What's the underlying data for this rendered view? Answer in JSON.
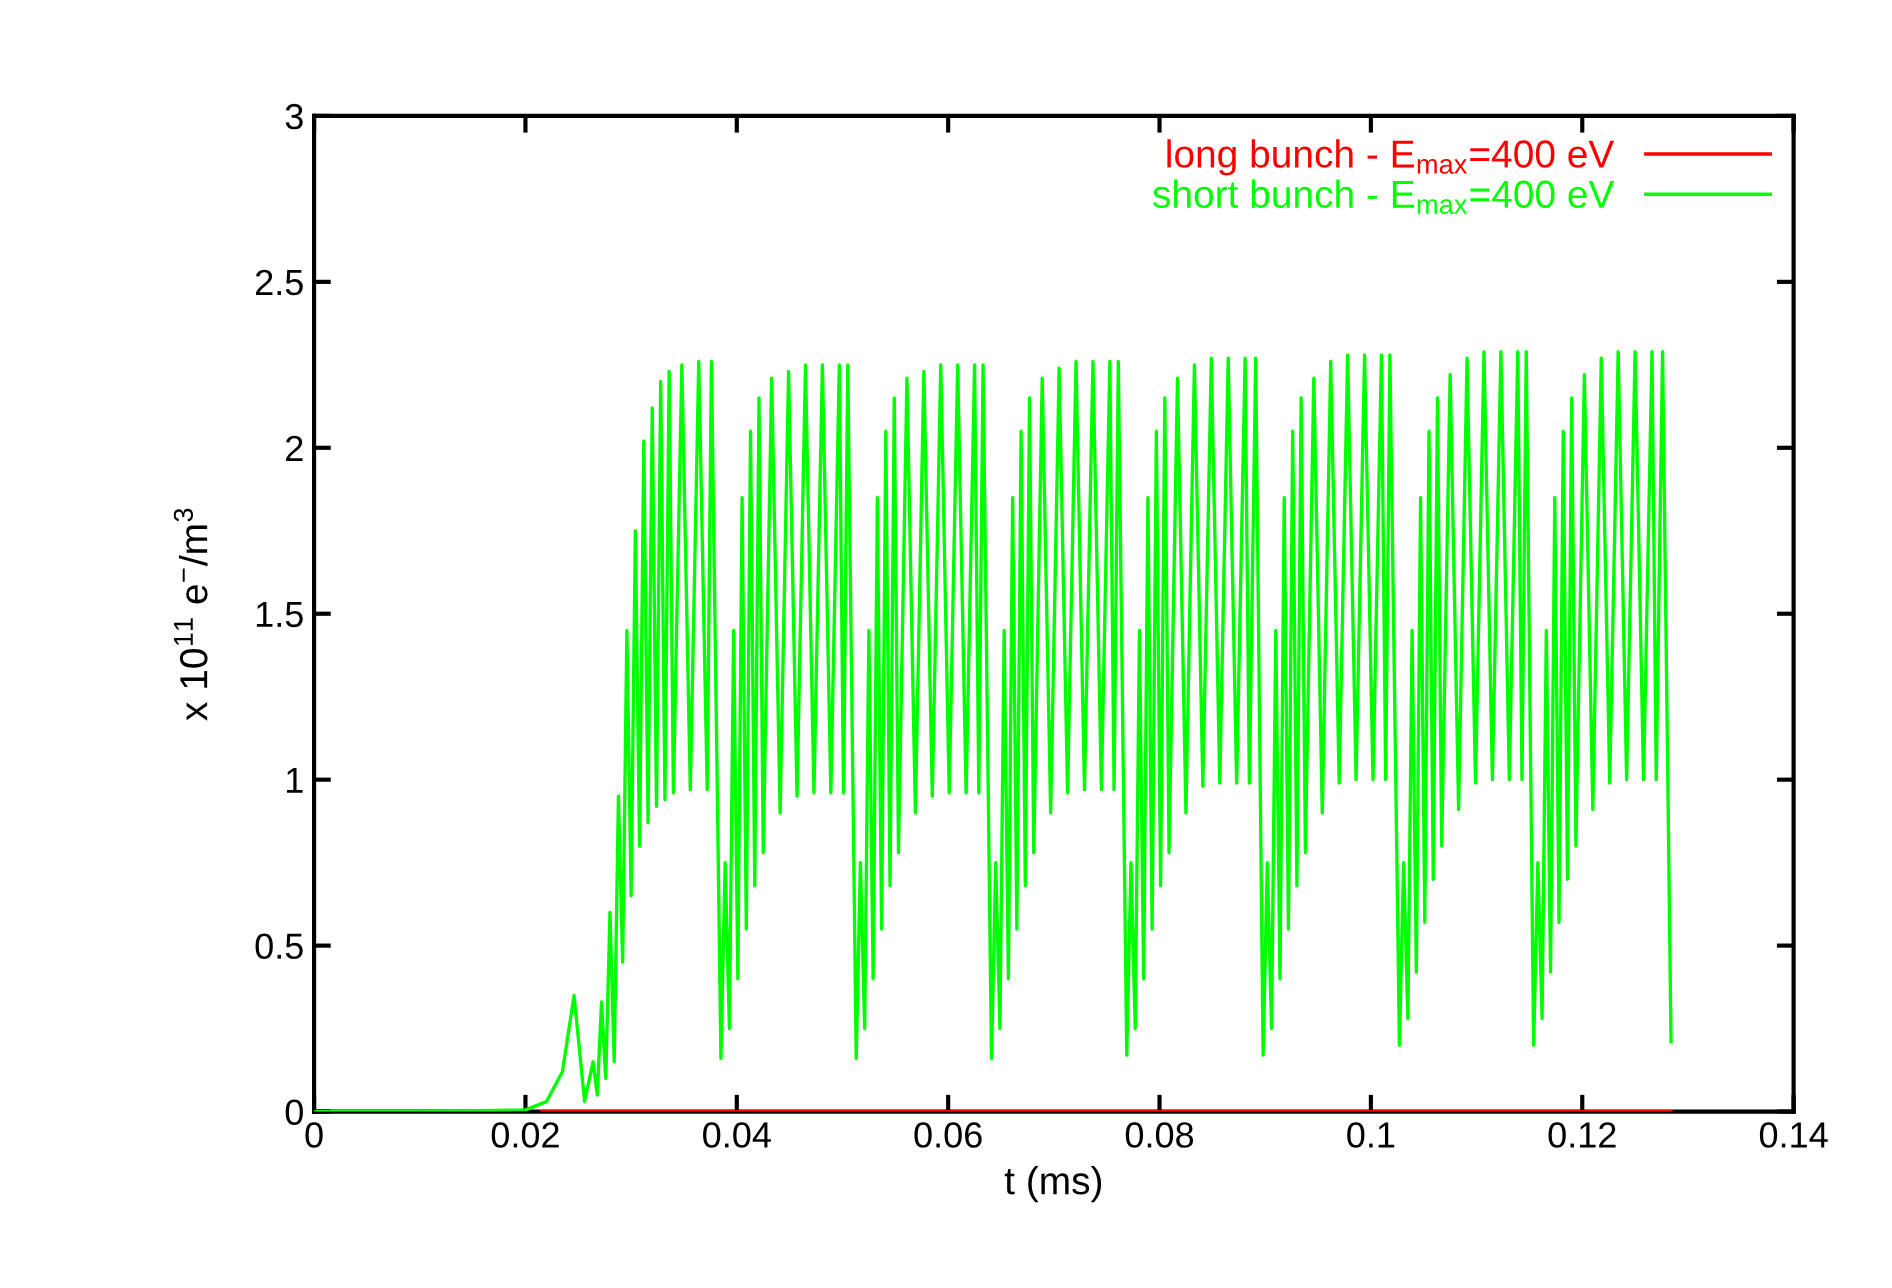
{
  "chart_data": {
    "type": "line",
    "xlabel": "t (ms)",
    "ylabel": "x 10$^{11}$ e$^{−}$/m$^{3}$",
    "xlim": [
      0,
      0.14
    ],
    "xticks": [
      0,
      0.02,
      0.04,
      0.06,
      0.08,
      0.1,
      0.12,
      0.14
    ],
    "ylim": [
      0,
      3
    ],
    "yticks": [
      0,
      0.5,
      1,
      1.5,
      2,
      2.5,
      3
    ],
    "grid": false,
    "legend": "top right",
    "marker": "none",
    "line_style": "solid",
    "series": [
      {
        "name": "long bunch - E$_{max}$=400 eV",
        "color": "#ff0000",
        "x": [
          0.0215,
          0.1284
        ],
        "values": [
          0,
          0
        ]
      },
      {
        "name": "short bunch - E$_{max}$=400 eV",
        "color": "#00ff00",
        "x": [
          0,
          0.01,
          0.02,
          0.022,
          0.0235,
          0.0246,
          0.0256,
          0.0264,
          0.0268,
          0.0272,
          0.0276,
          0.028,
          0.0284,
          0.0288,
          0.0292,
          0.0296,
          0.03,
          0.0304,
          0.0308,
          0.0312,
          0.0316,
          0.032,
          0.0324,
          0.0328,
          0.0332,
          0.0336,
          0.034,
          0.0348,
          0.0356,
          0.0364,
          0.0372,
          0.0376,
          0.0385,
          0.0389,
          0.0393,
          0.0397,
          0.0401,
          0.0405,
          0.0409,
          0.0413,
          0.0417,
          0.0421,
          0.0425,
          0.0433,
          0.0441,
          0.0449,
          0.0457,
          0.0465,
          0.0473,
          0.0481,
          0.0489,
          0.0497,
          0.0501,
          0.0505,
          0.0513,
          0.0517,
          0.0521,
          0.0525,
          0.0529,
          0.0533,
          0.0537,
          0.0541,
          0.0545,
          0.0549,
          0.0553,
          0.0561,
          0.0569,
          0.0577,
          0.0585,
          0.0593,
          0.0601,
          0.0609,
          0.0617,
          0.0625,
          0.0629,
          0.0633,
          0.0641,
          0.0645,
          0.0649,
          0.0653,
          0.0657,
          0.0661,
          0.0665,
          0.0669,
          0.0673,
          0.0677,
          0.0681,
          0.0689,
          0.0697,
          0.0705,
          0.0713,
          0.0721,
          0.0729,
          0.0737,
          0.0745,
          0.0753,
          0.0757,
          0.0761,
          0.0769,
          0.0773,
          0.0777,
          0.0781,
          0.0785,
          0.0789,
          0.0793,
          0.0797,
          0.0801,
          0.0805,
          0.0809,
          0.0817,
          0.0825,
          0.0833,
          0.0841,
          0.0849,
          0.0857,
          0.0865,
          0.0873,
          0.0881,
          0.0885,
          0.0891,
          0.0898,
          0.0902,
          0.0906,
          0.091,
          0.0914,
          0.0918,
          0.0922,
          0.0926,
          0.093,
          0.0934,
          0.0938,
          0.0946,
          0.0954,
          0.0962,
          0.097,
          0.0978,
          0.0986,
          0.0994,
          0.1002,
          0.101,
          0.1014,
          0.1018,
          0.1027,
          0.1031,
          0.1035,
          0.1039,
          0.1043,
          0.1047,
          0.1051,
          0.1055,
          0.1059,
          0.1063,
          0.1067,
          0.1075,
          0.1083,
          0.1091,
          0.1099,
          0.1107,
          0.1115,
          0.1123,
          0.1131,
          0.1139,
          0.1143,
          0.1147,
          0.1154,
          0.1158,
          0.1162,
          0.1166,
          0.117,
          0.1174,
          0.1178,
          0.1182,
          0.1186,
          0.119,
          0.1194,
          0.1202,
          0.121,
          0.1218,
          0.1226,
          0.1234,
          0.1242,
          0.125,
          0.1258,
          0.1266,
          0.127,
          0.1276,
          0.1284
        ],
        "values": [
          0,
          0,
          0.005,
          0.03,
          0.12,
          0.35,
          0.03,
          0.15,
          0.05,
          0.33,
          0.1,
          0.6,
          0.15,
          0.95,
          0.45,
          1.45,
          0.65,
          1.75,
          0.8,
          2.02,
          0.87,
          2.12,
          0.92,
          2.2,
          0.94,
          2.23,
          0.96,
          2.25,
          0.97,
          2.26,
          0.97,
          2.26,
          0.16,
          0.75,
          0.25,
          1.45,
          0.4,
          1.85,
          0.55,
          2.05,
          0.68,
          2.15,
          0.78,
          2.21,
          0.9,
          2.23,
          0.95,
          2.25,
          0.96,
          2.25,
          0.96,
          2.25,
          0.96,
          2.25,
          0.16,
          0.75,
          0.25,
          1.45,
          0.4,
          1.85,
          0.55,
          2.05,
          0.68,
          2.15,
          0.78,
          2.21,
          0.9,
          2.23,
          0.95,
          2.25,
          0.96,
          2.25,
          0.96,
          2.25,
          0.96,
          2.25,
          0.16,
          0.75,
          0.25,
          1.45,
          0.4,
          1.85,
          0.55,
          2.05,
          0.68,
          2.15,
          0.78,
          2.21,
          0.9,
          2.24,
          0.96,
          2.26,
          0.97,
          2.26,
          0.97,
          2.26,
          0.97,
          2.26,
          0.17,
          0.75,
          0.25,
          1.45,
          0.4,
          1.85,
          0.55,
          2.05,
          0.68,
          2.15,
          0.78,
          2.21,
          0.9,
          2.25,
          0.98,
          2.27,
          0.99,
          2.27,
          0.99,
          2.27,
          0.99,
          2.27,
          0.17,
          0.75,
          0.25,
          1.45,
          0.4,
          1.85,
          0.55,
          2.05,
          0.68,
          2.15,
          0.78,
          2.21,
          0.9,
          2.26,
          0.99,
          2.28,
          1.0,
          2.28,
          1.0,
          2.28,
          1.0,
          2.28,
          0.2,
          0.75,
          0.28,
          1.45,
          0.42,
          1.85,
          0.57,
          2.05,
          0.7,
          2.15,
          0.8,
          2.22,
          0.91,
          2.27,
          0.99,
          2.29,
          1.0,
          2.29,
          1.0,
          2.29,
          1.0,
          2.29,
          0.2,
          0.75,
          0.28,
          1.45,
          0.42,
          1.85,
          0.57,
          2.05,
          0.7,
          2.15,
          0.8,
          2.22,
          0.91,
          2.27,
          0.99,
          2.29,
          1.0,
          2.29,
          1.0,
          2.29,
          1.0,
          2.29,
          0.21
        ]
      }
    ]
  }
}
